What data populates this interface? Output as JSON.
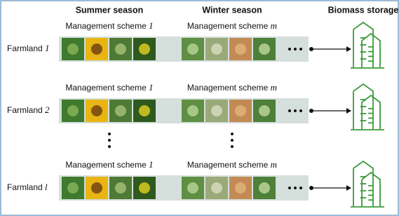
{
  "header": {
    "summer": "Summer season",
    "winter": "Winter season",
    "storage": "Biomass storage"
  },
  "rows": [
    {
      "farmland": {
        "label": "Farmland",
        "index": "1"
      },
      "summer_scheme": {
        "label": "Management scheme",
        "index": "1"
      },
      "winter_scheme": {
        "label": "Management scheme",
        "index": "m"
      }
    },
    {
      "farmland": {
        "label": "Farmland",
        "index": "2"
      },
      "summer_scheme": {
        "label": "Management scheme",
        "index": "1"
      },
      "winter_scheme": {
        "label": "Management scheme",
        "index": "m"
      }
    },
    {
      "farmland": {
        "label": "Farmland",
        "index": "l"
      },
      "summer_scheme": {
        "label": "Management scheme",
        "index": "1"
      },
      "winter_scheme": {
        "label": "Management scheme",
        "index": "m"
      }
    }
  ]
}
